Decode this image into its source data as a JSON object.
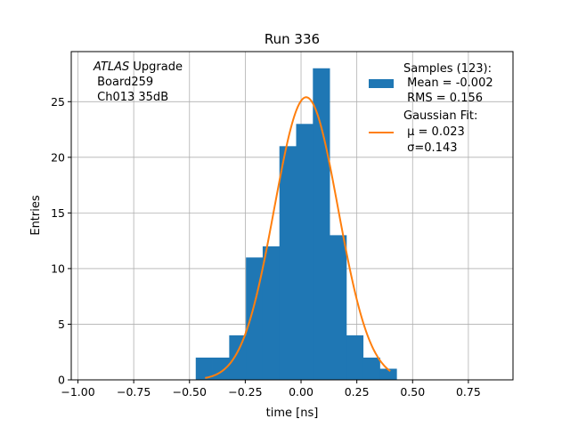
{
  "chart_data": {
    "type": "bar",
    "title": "Run 336",
    "xlabel": "time [ns]",
    "ylabel": "Entries",
    "xlim": [
      -1.03,
      0.95
    ],
    "ylim": [
      0,
      29.5
    ],
    "xticks": [
      -1.0,
      -0.75,
      -0.5,
      -0.25,
      0.0,
      0.25,
      0.5,
      0.75
    ],
    "xtick_labels": [
      "−1.00",
      "−0.75",
      "−0.50",
      "−0.25",
      "0.00",
      "0.25",
      "0.50",
      "0.75"
    ],
    "yticks": [
      0,
      5,
      10,
      15,
      20,
      25
    ],
    "ytick_labels": [
      "0",
      "5",
      "10",
      "15",
      "20",
      "25"
    ],
    "grid": true,
    "legend_position": "top-right",
    "annotation": {
      "italic": "ATLAS",
      "line1_rest": " Upgrade",
      "line2": " Board259",
      "line3": " Ch013 35dB"
    },
    "series": [
      {
        "kind": "histogram",
        "color": "#1f77b4",
        "legend_lines": [
          "Samples (123):",
          " Mean = -0.002",
          " RMS = 0.156"
        ],
        "bin_edges": [
          -0.472,
          -0.397,
          -0.322,
          -0.247,
          -0.172,
          -0.097,
          -0.022,
          0.053,
          0.128,
          0.203,
          0.278,
          0.353,
          0.428
        ],
        "values": [
          2,
          2,
          4,
          11,
          12,
          21,
          23,
          28,
          13,
          4,
          2,
          1
        ]
      },
      {
        "kind": "line",
        "color": "#ff7f0e",
        "legend_lines": [
          "Gaussian Fit:",
          " μ = 0.023",
          " σ=0.143"
        ],
        "mu": 0.023,
        "sigma": 0.143,
        "amplitude": 25.4,
        "x_range": [
          -0.43,
          0.4
        ]
      }
    ]
  }
}
